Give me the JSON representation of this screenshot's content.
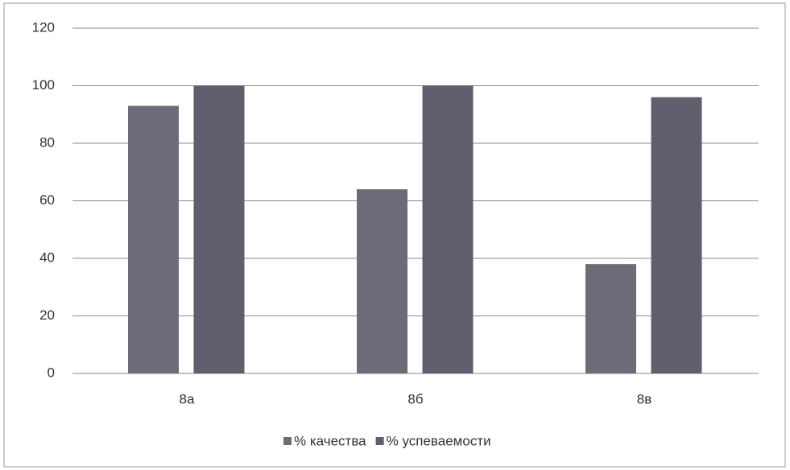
{
  "chart_data": {
    "type": "bar",
    "categories": [
      "8а",
      "8б",
      "8в"
    ],
    "series": [
      {
        "name": "% качества",
        "color": "#6b6b79",
        "values": [
          93,
          64,
          38
        ]
      },
      {
        "name": "% успеваемости",
        "color": "#5f5f6d",
        "values": [
          100,
          100,
          96
        ]
      }
    ],
    "ylim": [
      0,
      120
    ],
    "yticks": [
      0,
      20,
      40,
      60,
      80,
      100,
      120
    ],
    "grid": true,
    "legend": "bottom"
  }
}
